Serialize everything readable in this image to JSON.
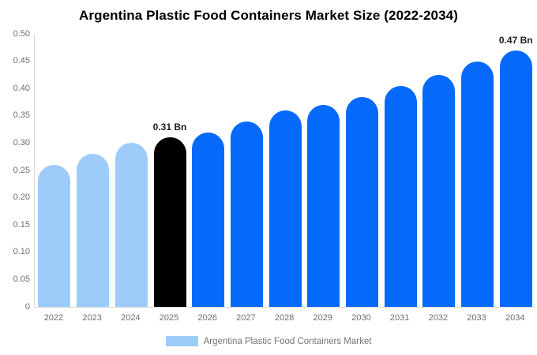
{
  "header": {
    "title": "Argentina Plastic Food Containers Market Size (2022-2034)"
  },
  "legend": {
    "label": "Argentina Plastic Food Containers Market"
  },
  "colors": {
    "historical_bar": "#9eccfa",
    "base_year_bar": "#000000",
    "forecast_bar": "#0569fb",
    "axis_line": "#d9d9d9",
    "tick_label_text": "#6e6e6e",
    "annotation_text": "#1f1f1f",
    "legend_text": "#757575",
    "title_text": "#000000",
    "background": "#ffffff"
  },
  "chart_data": {
    "type": "bar",
    "title": "Argentina Plastic Food Containers Market Size (2022-2034)",
    "unit": "Bn",
    "categories": [
      "2022",
      "2023",
      "2024",
      "2025",
      "2026",
      "2027",
      "2028",
      "2029",
      "2030",
      "2031",
      "2032",
      "2033",
      "2034"
    ],
    "series": [
      {
        "name": "Argentina Plastic Food Containers Market",
        "values": [
          0.26,
          0.28,
          0.3,
          0.31,
          0.32,
          0.34,
          0.36,
          0.37,
          0.385,
          0.405,
          0.425,
          0.45,
          0.47
        ]
      }
    ],
    "bar_roles": [
      "historical",
      "historical",
      "historical",
      "base_year",
      "forecast",
      "forecast",
      "forecast",
      "forecast",
      "forecast",
      "forecast",
      "forecast",
      "forecast",
      "forecast"
    ],
    "annotations": [
      {
        "category": "2025",
        "text": "0.31 Bn"
      },
      {
        "category": "2034",
        "text": "0.47 Bn"
      }
    ],
    "xlabel": "",
    "ylabel": "",
    "ylim": [
      0,
      0.5
    ],
    "ytick_labels": [
      "0",
      "0.05",
      "0.10",
      "0.15",
      "0.20",
      "0.25",
      "0.30",
      "0.35",
      "0.40",
      "0.45",
      "0.50"
    ],
    "grid": false,
    "legend_position": "bottom"
  }
}
